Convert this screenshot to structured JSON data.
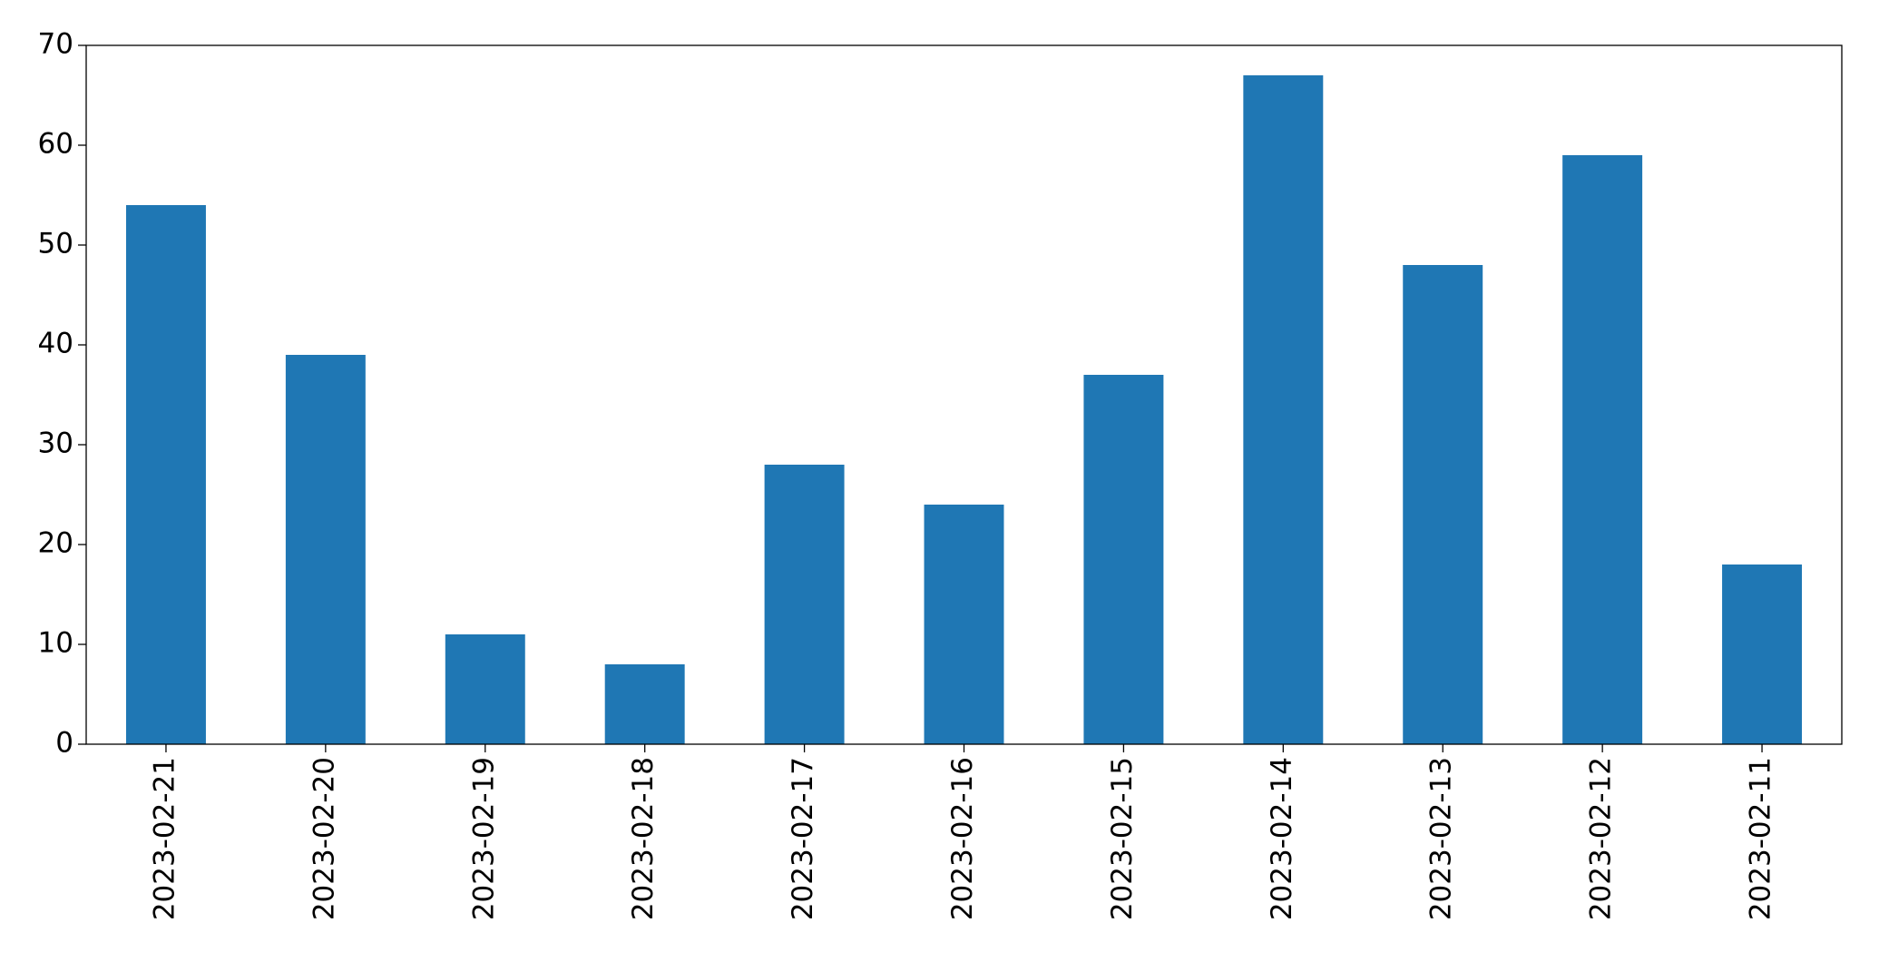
{
  "chart_data": {
    "type": "bar",
    "categories": [
      "2023-02-21",
      "2023-02-20",
      "2023-02-19",
      "2023-02-18",
      "2023-02-17",
      "2023-02-16",
      "2023-02-15",
      "2023-02-14",
      "2023-02-13",
      "2023-02-12",
      "2023-02-11"
    ],
    "values": [
      54,
      39,
      11,
      8,
      28,
      24,
      37,
      67,
      48,
      59,
      18
    ],
    "color": "#1f77b4",
    "ylim": [
      0,
      70
    ],
    "yticks": [
      0,
      10,
      20,
      30,
      40,
      50,
      60,
      70
    ],
    "grid": false
  }
}
